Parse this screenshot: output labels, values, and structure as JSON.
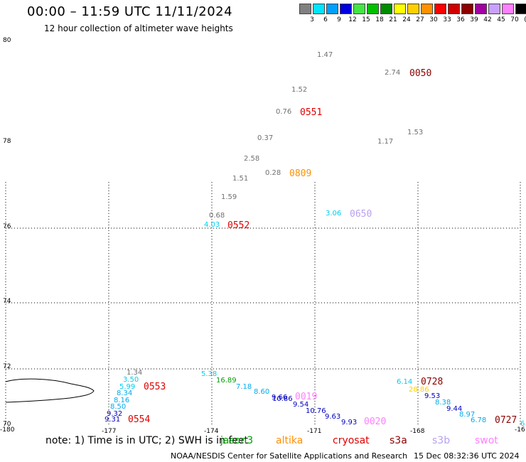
{
  "header": {
    "title": "00:00 – 11:59 UTC 11/11/2024",
    "subtitle": "12 hour collection of altimeter wave heights"
  },
  "legend": {
    "unit": "(ft)",
    "items": [
      {
        "label": "3",
        "color": "#808080"
      },
      {
        "label": "6",
        "color": "#00e5ff"
      },
      {
        "label": "9",
        "color": "#00a0ff"
      },
      {
        "label": "12",
        "color": "#0000e0"
      },
      {
        "label": "15",
        "color": "#44e644"
      },
      {
        "label": "18",
        "color": "#00c000"
      },
      {
        "label": "21",
        "color": "#008c00"
      },
      {
        "label": "24",
        "color": "#ffff00"
      },
      {
        "label": "27",
        "color": "#ffd000"
      },
      {
        "label": "30",
        "color": "#ff9000"
      },
      {
        "label": "33",
        "color": "#ff0000"
      },
      {
        "label": "36",
        "color": "#d00000"
      },
      {
        "label": "39",
        "color": "#8c0000"
      },
      {
        "label": "42",
        "color": "#a000a0"
      },
      {
        "label": "45",
        "color": "#c8a0ff"
      },
      {
        "label": "70",
        "color": "#ff80ff"
      },
      {
        "label": "",
        "color": "#000000"
      }
    ]
  },
  "axes": {
    "lat_labels": [
      "80",
      "78",
      "76",
      "74",
      "72",
      "70"
    ],
    "lon_labels": [
      "-180",
      "-177",
      "-174",
      "-171",
      "-168",
      "-16"
    ]
  },
  "observations": [
    {
      "text": "1.47",
      "color": "#707070"
    },
    {
      "text": "2.74",
      "color": "#707070"
    },
    {
      "text": "0050",
      "color": "#8c0000"
    },
    {
      "text": "1.52",
      "color": "#707070"
    },
    {
      "text": "0.76",
      "color": "#707070"
    },
    {
      "text": "0551",
      "color": "#e00000"
    },
    {
      "text": "1.53",
      "color": "#707070"
    },
    {
      "text": "0.37",
      "color": "#707070"
    },
    {
      "text": "1.17",
      "color": "#707070"
    },
    {
      "text": "2.58",
      "color": "#707070"
    },
    {
      "text": "0.28",
      "color": "#707070"
    },
    {
      "text": "0809",
      "color": "#ff9000"
    },
    {
      "text": "1.51",
      "color": "#707070"
    },
    {
      "text": "1.59",
      "color": "#707070"
    },
    {
      "text": "0.68",
      "color": "#707070"
    },
    {
      "text": "3.06",
      "color": "#00ccee"
    },
    {
      "text": "0650",
      "color": "#b8a0f0"
    },
    {
      "text": "4.03",
      "color": "#00ccee"
    },
    {
      "text": "0552",
      "color": "#e00000"
    },
    {
      "text": "1.34",
      "color": "#707070"
    },
    {
      "text": "3.50",
      "color": "#00ccee"
    },
    {
      "text": "5.99",
      "color": "#00ccee"
    },
    {
      "text": "0553",
      "color": "#e00000"
    },
    {
      "text": "8.34",
      "color": "#00aaee"
    },
    {
      "text": "8.16",
      "color": "#00aaee"
    },
    {
      "text": "8.50",
      "color": "#00aaee"
    },
    {
      "text": "9.32",
      "color": "#0000c0"
    },
    {
      "text": "9.31",
      "color": "#0000c0"
    },
    {
      "text": "0554",
      "color": "#e00000"
    },
    {
      "text": "5.38",
      "color": "#00ccee"
    },
    {
      "text": "16.89",
      "color": "#00a000"
    },
    {
      "text": "7.18",
      "color": "#00aaee"
    },
    {
      "text": "8.60",
      "color": "#00aaee"
    },
    {
      "text": "9.66",
      "color": "#0000c0"
    },
    {
      "text": "10.86",
      "color": "#0000c0"
    },
    {
      "text": "0019",
      "color": "#ff80ff"
    },
    {
      "text": "9.54",
      "color": "#0000c0"
    },
    {
      "text": "10.76",
      "color": "#0000c0"
    },
    {
      "text": "9.63",
      "color": "#0000c0"
    },
    {
      "text": "9.93",
      "color": "#0000c0"
    },
    {
      "text": "0020",
      "color": "#ff80ff"
    },
    {
      "text": "6.14",
      "color": "#00ccee"
    },
    {
      "text": "0728",
      "color": "#8c0000"
    },
    {
      "text": "28.86",
      "color": "#ffd000"
    },
    {
      "text": "9.53",
      "color": "#0000c0"
    },
    {
      "text": "8.38",
      "color": "#00aaee"
    },
    {
      "text": "9.44",
      "color": "#0000c0"
    },
    {
      "text": "8.97",
      "color": "#00aaee"
    },
    {
      "text": "6.78",
      "color": "#00aaee"
    },
    {
      "text": "0727",
      "color": "#8c0000"
    },
    {
      "text": "6",
      "color": "#00ccee"
    }
  ],
  "footer": {
    "note": "note: 1) Time is in UTC; 2) SWH is in feet",
    "satellites": [
      {
        "name": "jason3",
        "color": "#00a000"
      },
      {
        "name": "altika",
        "color": "#ff9000"
      },
      {
        "name": "cryosat",
        "color": "#e00000"
      },
      {
        "name": "s3a",
        "color": "#8c0000"
      },
      {
        "name": "s3b",
        "color": "#b8a0f0"
      },
      {
        "name": "swot",
        "color": "#ff80ff"
      }
    ],
    "credit": "NOAA/NESDIS Center for Satellite Applications and Research",
    "timestamp": "15 Dec 08:32:36 UTC 2024"
  }
}
